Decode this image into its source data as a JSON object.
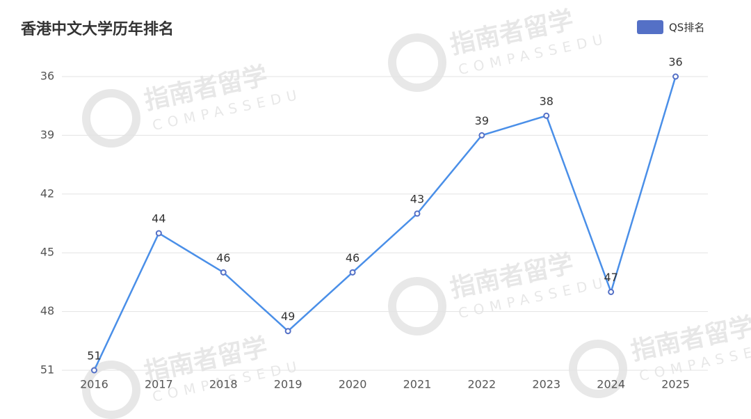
{
  "chart_data": {
    "type": "line",
    "title": "香港中文大学历年排名",
    "categories": [
      "2016",
      "2017",
      "2018",
      "2019",
      "2020",
      "2021",
      "2022",
      "2023",
      "2024",
      "2025"
    ],
    "series": [
      {
        "name": "QS排名",
        "color": "#4a8fe8",
        "values": [
          51,
          44,
          46,
          49,
          46,
          43,
          39,
          38,
          47,
          36
        ]
      }
    ],
    "ylim": [
      51,
      36
    ],
    "yticks": [
      36,
      39,
      42,
      45,
      48,
      51
    ],
    "grid": true,
    "legend": "top-right",
    "watermark": {
      "cn": "指南者留学",
      "en": "COMPASSEDU"
    }
  }
}
